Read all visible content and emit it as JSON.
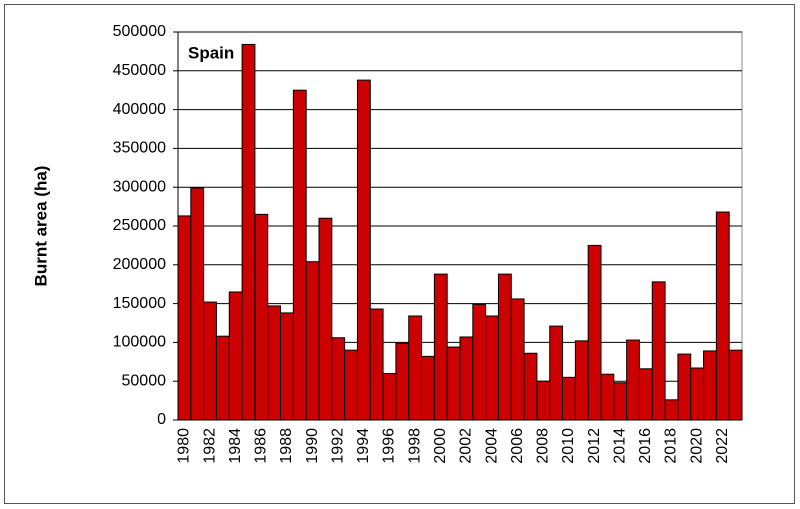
{
  "chart_data": {
    "type": "bar",
    "annotation": "Spain",
    "y_label": "Burnt area (ha)",
    "categories": [
      "1980",
      null,
      "1982",
      null,
      "1984",
      null,
      "1986",
      null,
      "1988",
      null,
      "1990",
      null,
      "1992",
      null,
      "1994",
      null,
      "1996",
      null,
      "1998",
      null,
      "2000",
      null,
      "2002",
      null,
      "2004",
      null,
      "2006",
      null,
      "2008",
      null,
      "2010",
      null,
      "2012",
      null,
      "2014",
      null,
      "2016",
      null,
      "2018",
      null,
      "2020",
      null,
      "2022",
      null
    ],
    "values": [
      263000,
      299000,
      152000,
      108000,
      165000,
      484000,
      265000,
      147000,
      138000,
      425000,
      204000,
      260000,
      106000,
      90000,
      438000,
      143000,
      60000,
      99000,
      134000,
      82000,
      188000,
      94000,
      107000,
      149000,
      134000,
      188000,
      156000,
      86000,
      50000,
      121000,
      55000,
      102000,
      225000,
      59000,
      48000,
      103000,
      66000,
      178000,
      26000,
      85000,
      67000,
      89000,
      268000,
      90000
    ],
    "color": "#cc0000",
    "ylim": [
      0,
      500000
    ],
    "yticks": [
      0,
      50000,
      100000,
      150000,
      200000,
      250000,
      300000,
      350000,
      400000,
      450000,
      500000
    ],
    "grid": true
  }
}
